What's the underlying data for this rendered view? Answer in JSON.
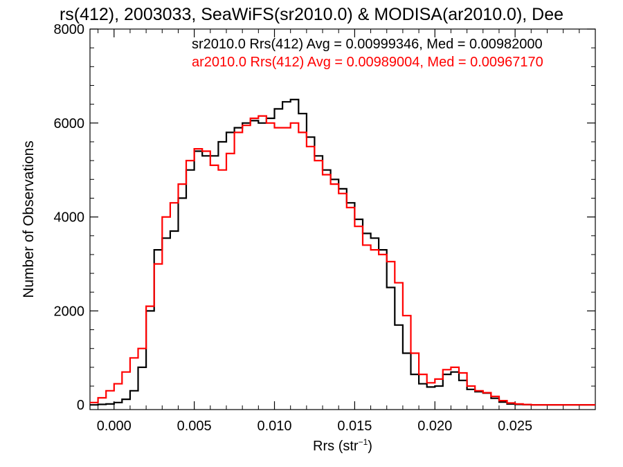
{
  "chart_data": {
    "type": "line",
    "title": "rs(412), 2003033, SeaWiFS(sr2010.0) & MODISA(ar2010.0), Dee",
    "xlabel": "Rrs (str",
    "xlabel_sup": "−1",
    "xlabel_close": ")",
    "ylabel": "Number of Observations",
    "xlim": [
      -0.0015,
      0.03
    ],
    "ylim": [
      -100,
      8000
    ],
    "xticks": [
      0.0,
      0.005,
      0.01,
      0.015,
      0.02,
      0.025
    ],
    "xtick_labels": [
      "0.000",
      "0.005",
      "0.010",
      "0.015",
      "0.020",
      "0.025"
    ],
    "yticks": [
      0,
      2000,
      4000,
      6000,
      8000
    ],
    "ytick_labels": [
      "0",
      "2000",
      "4000",
      "6000",
      "8000"
    ],
    "grid": false,
    "annotations": [
      {
        "text": "sr2010.0 Rrs(412) Avg = 0.00999346, Med = 0.00982000",
        "color": "#000000"
      },
      {
        "text": "ar2010.0 Rrs(412) Avg = 0.00989004, Med = 0.00967170",
        "color": "#ff0000"
      }
    ],
    "series": [
      {
        "color": "#000000",
        "x": [
          -0.0015,
          -0.001,
          -0.0005,
          0.0,
          0.0005,
          0.001,
          0.0015,
          0.002,
          0.0025,
          0.003,
          0.0035,
          0.004,
          0.0045,
          0.005,
          0.0055,
          0.006,
          0.0065,
          0.007,
          0.0075,
          0.008,
          0.0085,
          0.009,
          0.0095,
          0.01,
          0.0105,
          0.011,
          0.0115,
          0.012,
          0.0125,
          0.013,
          0.0135,
          0.014,
          0.0145,
          0.015,
          0.0155,
          0.016,
          0.0165,
          0.017,
          0.0175,
          0.018,
          0.0185,
          0.019,
          0.0195,
          0.02,
          0.0205,
          0.021,
          0.0215,
          0.022,
          0.0225,
          0.023,
          0.0235,
          0.024,
          0.0245,
          0.025,
          0.0255,
          0.026,
          0.027,
          0.028,
          0.029,
          0.03
        ],
        "y": [
          0,
          10,
          20,
          50,
          120,
          300,
          800,
          2000,
          3300,
          3550,
          3700,
          4400,
          5000,
          5400,
          5300,
          5300,
          5600,
          5800,
          5900,
          6000,
          6050,
          6000,
          6100,
          6300,
          6450,
          6500,
          6200,
          5700,
          5300,
          5000,
          4800,
          4600,
          4300,
          3950,
          3650,
          3550,
          3300,
          2500,
          1700,
          1100,
          650,
          450,
          380,
          400,
          650,
          700,
          520,
          330,
          280,
          250,
          140,
          60,
          20,
          10,
          5,
          0,
          0,
          0,
          0,
          0
        ]
      },
      {
        "color": "#ff0000",
        "x": [
          -0.0015,
          -0.001,
          -0.0005,
          0.0,
          0.0005,
          0.001,
          0.0015,
          0.002,
          0.0025,
          0.003,
          0.0035,
          0.004,
          0.0045,
          0.005,
          0.0055,
          0.006,
          0.0065,
          0.007,
          0.0075,
          0.008,
          0.0085,
          0.009,
          0.0095,
          0.01,
          0.0105,
          0.011,
          0.0115,
          0.012,
          0.0125,
          0.013,
          0.0135,
          0.014,
          0.0145,
          0.015,
          0.0155,
          0.016,
          0.0165,
          0.017,
          0.0175,
          0.018,
          0.0185,
          0.019,
          0.0195,
          0.02,
          0.0205,
          0.021,
          0.0215,
          0.022,
          0.0225,
          0.023,
          0.0235,
          0.024,
          0.0245,
          0.025,
          0.0255,
          0.026,
          0.027,
          0.028,
          0.029,
          0.03
        ],
        "y": [
          50,
          150,
          300,
          450,
          700,
          1000,
          1200,
          2100,
          3000,
          4000,
          4300,
          4700,
          5200,
          5450,
          5400,
          5100,
          5000,
          5350,
          5800,
          5950,
          6100,
          6150,
          6000,
          5900,
          5900,
          6000,
          5800,
          5500,
          5200,
          4900,
          4700,
          4500,
          4200,
          3800,
          3400,
          3300,
          3200,
          3050,
          2600,
          1900,
          1100,
          650,
          470,
          550,
          750,
          800,
          680,
          400,
          300,
          260,
          180,
          90,
          40,
          20,
          8,
          0,
          0,
          0,
          0,
          0
        ]
      }
    ]
  }
}
